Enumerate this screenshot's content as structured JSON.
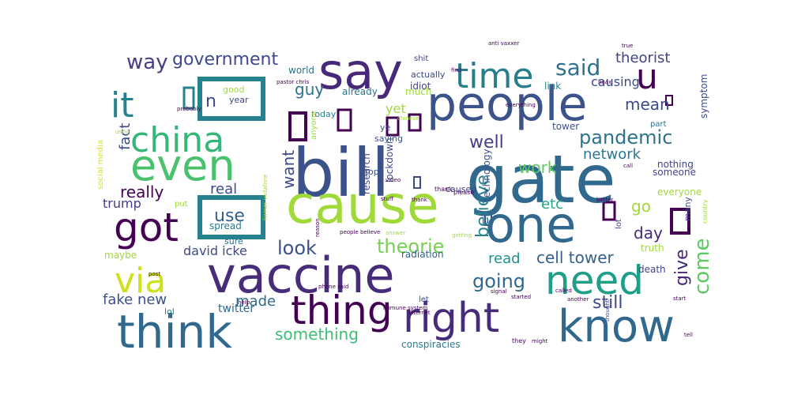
{
  "words": [
    {
      "text": "bill",
      "color": "#3b528b"
    },
    {
      "text": "gate",
      "color": "#31688e"
    },
    {
      "text": "people",
      "color": "#3b528b"
    },
    {
      "text": "vaccine",
      "color": "#472c7a"
    },
    {
      "text": "cause",
      "color": "#a0da39"
    },
    {
      "text": "say",
      "color": "#482878"
    },
    {
      "text": "think",
      "color": "#31688e"
    },
    {
      "text": "know",
      "color": "#31688e"
    },
    {
      "text": "right",
      "color": "#472c7a"
    },
    {
      "text": "thing",
      "color": "#440154"
    },
    {
      "text": "one",
      "color": "#31688e"
    },
    {
      "text": "need",
      "color": "#1f9e89"
    },
    {
      "text": "got",
      "color": "#440154"
    },
    {
      "text": "even",
      "color": "#4ac16d"
    },
    {
      "text": "time",
      "color": "#277f8e"
    },
    {
      "text": "via",
      "color": "#cde11d"
    },
    {
      "text": "china",
      "color": "#35b779"
    },
    {
      "text": "it",
      "color": "#26828e"
    },
    {
      "text": "u",
      "color": "#440154"
    },
    {
      "text": "government",
      "color": "#3e4989"
    },
    {
      "text": "way",
      "color": "#433e85"
    },
    {
      "text": "said",
      "color": "#2c728e"
    },
    {
      "text": "pandemic",
      "color": "#2c728e"
    },
    {
      "text": "theorist",
      "color": "#414487"
    },
    {
      "text": "causing",
      "color": "#3e4989"
    },
    {
      "text": "mean",
      "color": "#3e4989"
    },
    {
      "text": "network",
      "color": "#2a788e"
    },
    {
      "text": "come",
      "color": "#5ec962"
    },
    {
      "text": "give",
      "color": "#482878"
    },
    {
      "text": "cell tower",
      "color": "#355f8d"
    },
    {
      "text": "still",
      "color": "#3e4989"
    },
    {
      "text": "look",
      "color": "#3b528b"
    },
    {
      "text": "theorie",
      "color": "#75d054"
    },
    {
      "text": "read",
      "color": "#21918c"
    },
    {
      "text": "going",
      "color": "#31688e"
    },
    {
      "text": "fake new",
      "color": "#3b528b"
    },
    {
      "text": "made",
      "color": "#31688e"
    },
    {
      "text": "something",
      "color": "#3dbc74"
    },
    {
      "text": "really",
      "color": "#440154"
    },
    {
      "text": "real",
      "color": "#3e4989"
    },
    {
      "text": "use",
      "color": "#355f8d"
    },
    {
      "text": "want",
      "color": "#3e4989"
    },
    {
      "text": "fact",
      "color": "#3e4989"
    },
    {
      "text": "well",
      "color": "#433e85"
    },
    {
      "text": "work",
      "color": "#5ec962"
    },
    {
      "text": "believe",
      "color": "#26828e"
    },
    {
      "text": "etc",
      "color": "#20a386"
    },
    {
      "text": "guy",
      "color": "#2c728e"
    },
    {
      "text": "trump",
      "color": "#433e85"
    },
    {
      "text": "david icke",
      "color": "#3e4989"
    },
    {
      "text": "day",
      "color": "#482878"
    },
    {
      "text": "go",
      "color": "#a0da39"
    },
    {
      "text": "yet",
      "color": "#a0da39"
    },
    {
      "text": "twitter",
      "color": "#31688e"
    },
    {
      "text": "conspiracies",
      "color": "#2a788e"
    },
    {
      "text": "research",
      "color": "#3e4989"
    },
    {
      "text": "radiation",
      "color": "#355f8d"
    },
    {
      "text": "lockdown",
      "color": "#3e4989"
    },
    {
      "text": "spread",
      "color": "#2a788e"
    },
    {
      "text": "maybe",
      "color": "#a0da39"
    },
    {
      "text": "already",
      "color": "#2c728e"
    },
    {
      "text": "world",
      "color": "#2c728e"
    },
    {
      "text": "idiot",
      "color": "#414487"
    },
    {
      "text": "link",
      "color": "#26828e"
    },
    {
      "text": "death",
      "color": "#414487"
    },
    {
      "text": "tower",
      "color": "#3b528b"
    },
    {
      "text": "truth",
      "color": "#a0da39"
    },
    {
      "text": "nothing",
      "color": "#414487"
    },
    {
      "text": "someone",
      "color": "#414487"
    },
    {
      "text": "everyone",
      "color": "#a0da39"
    },
    {
      "text": "technology",
      "color": "#3b528b"
    },
    {
      "text": "symptom",
      "color": "#3e4989"
    },
    {
      "text": "much",
      "color": "#a0da39"
    },
    {
      "text": "actually",
      "color": "#3e4989"
    },
    {
      "text": "today",
      "color": "#26828e"
    },
    {
      "text": "saying",
      "color": "#3b528b"
    },
    {
      "text": "caused",
      "color": "#414487"
    },
    {
      "text": "stop",
      "color": "#3b528b"
    },
    {
      "text": "lol",
      "color": "#26828e"
    },
    {
      "text": "year",
      "color": "#3e4989"
    },
    {
      "text": "good",
      "color": "#a0da39"
    },
    {
      "text": "shit",
      "color": "#414487"
    },
    {
      "text": "social media",
      "color": "#dde318"
    },
    {
      "text": "sure",
      "color": "#2c728e"
    },
    {
      "text": "let",
      "color": "#3e4989"
    },
    {
      "text": "please",
      "color": "#440154"
    },
    {
      "text": "thank",
      "color": "#440154"
    },
    {
      "text": "part",
      "color": "#2c728e"
    },
    {
      "text": "lot",
      "color": "#3e4989"
    },
    {
      "text": "ye",
      "color": "#3e4989"
    },
    {
      "text": "anyone",
      "color": "#a0da39"
    },
    {
      "text": "people believe",
      "color": "#440154"
    },
    {
      "text": "immune system",
      "color": "#440154"
    },
    {
      "text": "phone said",
      "color": "#440154"
    },
    {
      "text": "started",
      "color": "#440154"
    },
    {
      "text": "many",
      "color": "#3e4989"
    },
    {
      "text": "everything",
      "color": "#440154"
    },
    {
      "text": "country",
      "color": "#a0da39"
    },
    {
      "text": "called",
      "color": "#440154"
    },
    {
      "text": "another",
      "color": "#440154"
    },
    {
      "text": "internet",
      "color": "#440154"
    },
    {
      "text": "probably",
      "color": "#440154"
    },
    {
      "text": "pastor chris",
      "color": "#440154"
    },
    {
      "text": "former vodafone",
      "color": "#a0da39"
    },
    {
      "text": "anti vaxxer",
      "color": "#440154"
    },
    {
      "text": "using",
      "color": "#a0da39"
    },
    {
      "text": "help",
      "color": "#440154"
    },
    {
      "text": "post",
      "color": "#440154"
    },
    {
      "text": "put",
      "color": "#a0da39"
    },
    {
      "text": "getting",
      "color": "#a0da39"
    },
    {
      "text": "better",
      "color": "#440154"
    },
    {
      "text": "start",
      "color": "#440154"
    },
    {
      "text": "might",
      "color": "#440154"
    },
    {
      "text": "tell",
      "color": "#440154"
    },
    {
      "text": "they",
      "color": "#440154"
    },
    {
      "text": "first",
      "color": "#440154"
    },
    {
      "text": "true",
      "color": "#440154"
    },
    {
      "text": "signal",
      "color": "#440154"
    },
    {
      "text": "stuff",
      "color": "#440154"
    },
    {
      "text": "video",
      "color": "#440154"
    },
    {
      "text": "reason",
      "color": "#440154"
    },
    {
      "text": "thought",
      "color": "#3e4989"
    },
    {
      "text": "chinese",
      "color": "#a0da39"
    },
    {
      "text": "answer",
      "color": "#a0da39"
    },
    {
      "text": "thank",
      "color": "#440154"
    },
    {
      "text": "hoax",
      "color": "#440154"
    },
    {
      "text": "call",
      "color": "#440154"
    },
    {
      "text": "n",
      "color": "#3e4989"
    }
  ]
}
